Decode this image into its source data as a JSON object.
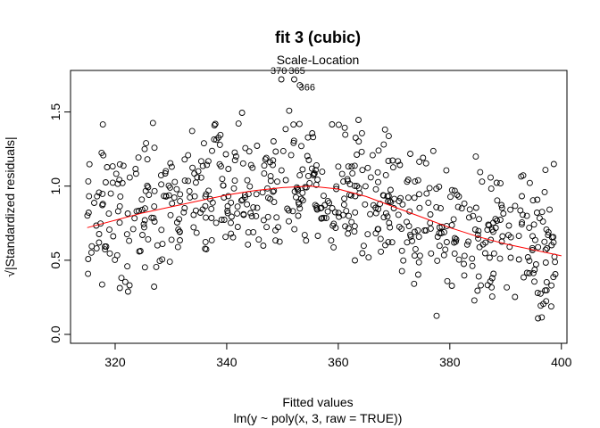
{
  "chart_data": {
    "type": "scatter",
    "title": "fit 3 (cubic)",
    "subtitle": "Scale-Location",
    "xlabel": "Fitted values",
    "ylabel": "√|Standardized residuals|",
    "sublabel": "lm(y ~ poly(x, 3, raw = TRUE))",
    "xlim": [
      312,
      401
    ],
    "ylim": [
      -0.06,
      1.78
    ],
    "xticks": [
      320,
      340,
      360,
      380,
      400
    ],
    "yticks": [
      0.0,
      0.5,
      1.0,
      1.5
    ],
    "xtick_labels": [
      "320",
      "340",
      "360",
      "380",
      "400"
    ],
    "ytick_labels": [
      "0.0",
      "0.5",
      "1.0",
      "1.5"
    ],
    "grid": false,
    "smoother": {
      "color": "#ff0000",
      "x": [
        315,
        320,
        325,
        330,
        335,
        340,
        345,
        350,
        355,
        360,
        365,
        370,
        375,
        380,
        385,
        390,
        395,
        400
      ],
      "y": [
        0.72,
        0.77,
        0.82,
        0.86,
        0.9,
        0.94,
        0.97,
        0.99,
        1.0,
        0.98,
        0.93,
        0.86,
        0.79,
        0.72,
        0.66,
        0.61,
        0.57,
        0.53
      ]
    },
    "labeled_points": [
      {
        "label": "370",
        "x": 349.8,
        "y": 1.72
      },
      {
        "label": "365",
        "x": 352.1,
        "y": 1.72
      },
      {
        "label": "366",
        "x": 353.1,
        "y": 1.68
      }
    ],
    "points": {
      "n": 640,
      "x_range": [
        315,
        399
      ],
      "seed": 42
    }
  }
}
